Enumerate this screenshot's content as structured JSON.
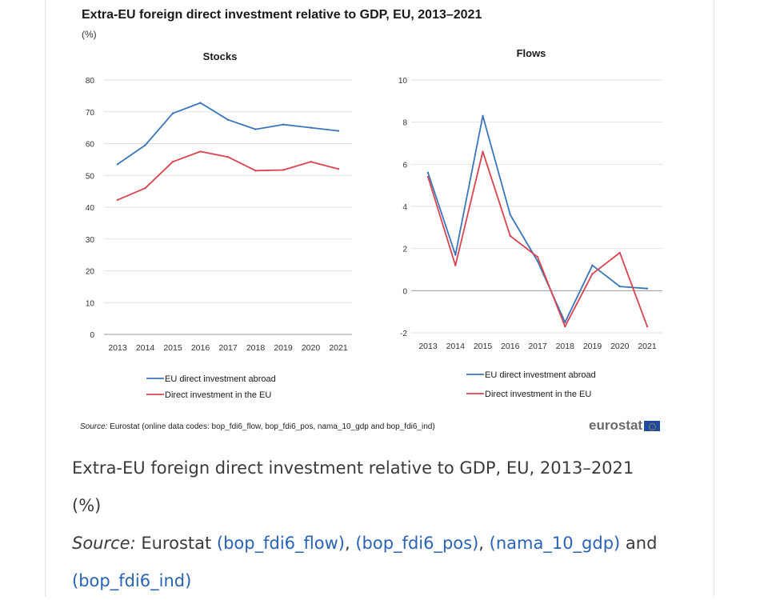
{
  "figure": {
    "title": "Extra-EU foreign direct investment relative to GDP, EU, 2013–2021",
    "unit": "(%)",
    "source_label": "Source:",
    "source_text": " Eurostat (online data codes: bop_fdi6_flow, bop_fdi6_pos, nama_10_gdp and bop_fdi6_ind)",
    "logo": "eurostat"
  },
  "chart_data": [
    {
      "type": "line",
      "title": "Stocks",
      "x": [
        "2013",
        "2014",
        "2015",
        "2016",
        "2017",
        "2018",
        "2019",
        "2020",
        "2021"
      ],
      "ylim": [
        0,
        80
      ],
      "yticks": [
        0,
        10,
        20,
        30,
        40,
        50,
        60,
        70,
        80
      ],
      "grid": true,
      "legend": "bottom",
      "series": [
        {
          "name": "EU direct investment abroad",
          "color": "#3a76bb",
          "values": [
            53.5,
            59.5,
            69.5,
            72.8,
            67.5,
            64.5,
            66.0,
            65.0,
            64.0
          ]
        },
        {
          "name": "Direct investment in the EU",
          "color": "#d9444e",
          "values": [
            42.3,
            46.0,
            54.3,
            57.5,
            55.8,
            51.5,
            51.7,
            54.3,
            52.0
          ]
        }
      ]
    },
    {
      "type": "line",
      "title": "Flows",
      "x": [
        "2013",
        "2014",
        "2015",
        "2016",
        "2017",
        "2018",
        "2019",
        "2020",
        "2021"
      ],
      "ylim": [
        -2,
        10
      ],
      "yticks": [
        -2,
        0,
        2,
        4,
        6,
        8,
        10
      ],
      "grid": true,
      "legend": "bottom",
      "series": [
        {
          "name": "EU direct investment abroad",
          "color": "#3a76bb",
          "values": [
            5.6,
            1.7,
            8.3,
            3.6,
            1.4,
            -1.5,
            1.2,
            0.2,
            0.1
          ]
        },
        {
          "name": "Direct investment in the EU",
          "color": "#d9444e",
          "values": [
            5.4,
            1.2,
            6.6,
            2.6,
            1.6,
            -1.7,
            0.8,
            1.8,
            -1.7
          ]
        }
      ]
    }
  ],
  "caption": {
    "title": "Extra-EU foreign direct investment relative to GDP, EU, 2013–2021",
    "unit": "(%)",
    "source_label": "Source:",
    "source_pre": " Eurostat ",
    "link1": "(bop_fdi6_flow)",
    "sep1": ", ",
    "link2": "(bop_fdi6_pos)",
    "sep2": ", ",
    "link3": "(nama_10_gdp)",
    "and": " and",
    "link4": "(bop_fdi6_ind)"
  }
}
